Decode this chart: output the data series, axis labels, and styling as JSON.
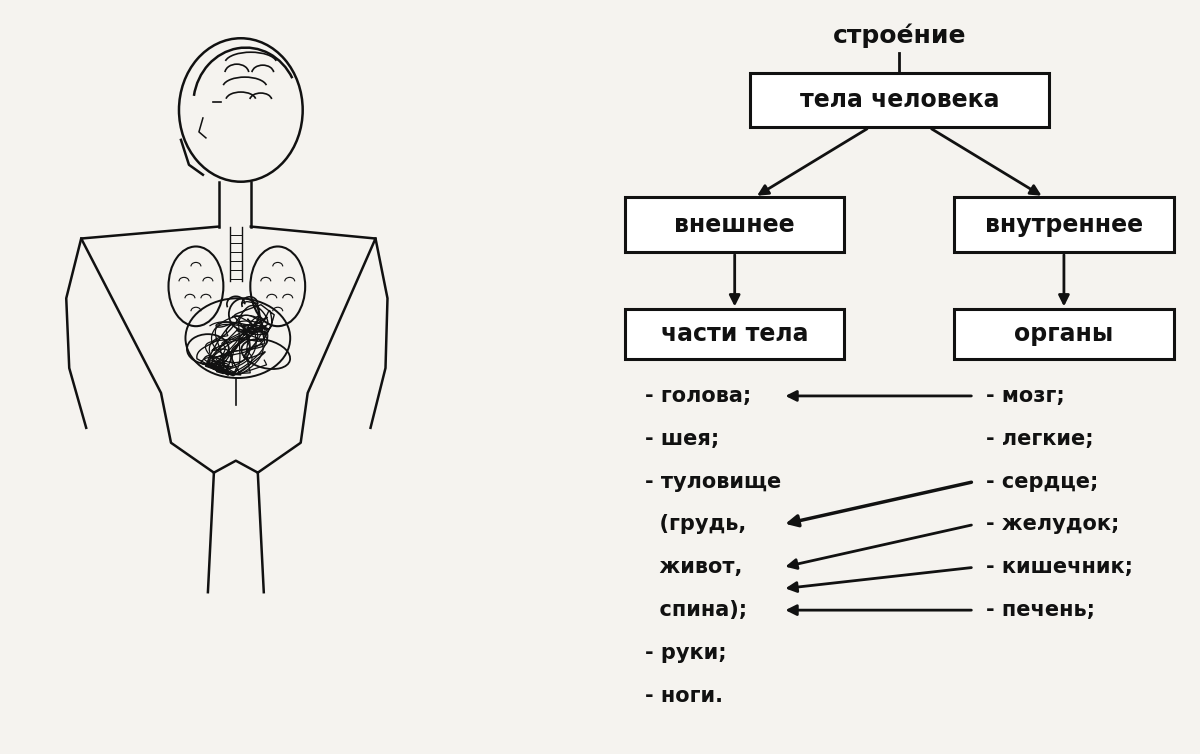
{
  "bg_color": "#f5f3ef",
  "text_color": "#111111",
  "box_color": "#ffffff",
  "box_edge_color": "#111111",
  "title_text": "строе́ние",
  "root_text": "тела человека",
  "left_mid_text": "внешнее",
  "right_mid_text": "внутреннее",
  "left_bottom_text": "части тела",
  "right_bottom_text": "органы",
  "left_list": [
    "- голова;",
    "- шея;",
    "- туловище",
    "  (грудь,",
    "  живот,",
    "  спина);",
    "- руки;",
    "- ноги."
  ],
  "right_list": [
    "- мозг;",
    "- легкие;",
    "- сердце;",
    "- желудок;",
    "- кишечник;",
    "- печень;"
  ],
  "font_size_title": 17,
  "font_size_box": 17,
  "font_size_list": 15
}
